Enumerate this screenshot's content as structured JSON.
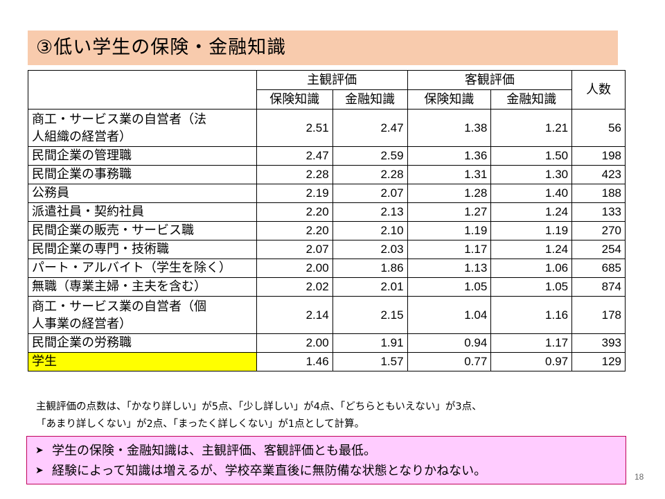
{
  "title": "③低い学生の保険・金融知識",
  "table": {
    "group_headers": [
      "主観評価",
      "客観評価"
    ],
    "count_header": "人数",
    "sub_headers": [
      "保険知識",
      "金融知識",
      "保険知識",
      "金融知識"
    ],
    "rows": [
      {
        "category": "商工・サービス業の自営者（法人組織の経営者）",
        "values": [
          "2.51",
          "2.47",
          "1.38",
          "1.21",
          "56"
        ]
      },
      {
        "category": "民間企業の管理職",
        "values": [
          "2.47",
          "2.59",
          "1.36",
          "1.50",
          "198"
        ]
      },
      {
        "category": "民間企業の事務職",
        "values": [
          "2.28",
          "2.28",
          "1.31",
          "1.30",
          "423"
        ]
      },
      {
        "category": "公務員",
        "values": [
          "2.19",
          "2.07",
          "1.28",
          "1.40",
          "188"
        ]
      },
      {
        "category": "派遣社員・契約社員",
        "values": [
          "2.20",
          "2.13",
          "1.27",
          "1.24",
          "133"
        ]
      },
      {
        "category": "民間企業の販売・サービス職",
        "values": [
          "2.20",
          "2.10",
          "1.19",
          "1.19",
          "270"
        ]
      },
      {
        "category": "民間企業の専門・技術職",
        "values": [
          "2.07",
          "2.03",
          "1.17",
          "1.24",
          "254"
        ]
      },
      {
        "category": "パート・アルバイト（学生を除く）",
        "values": [
          "2.00",
          "1.86",
          "1.13",
          "1.06",
          "685"
        ]
      },
      {
        "category": "無職（専業主婦・主夫を含む）",
        "values": [
          "2.02",
          "2.01",
          "1.05",
          "1.05",
          "874"
        ]
      },
      {
        "category": "商工・サービス業の自営者（個人事業の経営者）",
        "values": [
          "2.14",
          "2.15",
          "1.04",
          "1.16",
          "178"
        ]
      },
      {
        "category": "民間企業の労務職",
        "values": [
          "2.00",
          "1.91",
          "0.94",
          "1.17",
          "393"
        ]
      },
      {
        "category": "学生",
        "values": [
          "1.46",
          "1.57",
          "0.77",
          "0.97",
          "129"
        ],
        "highlight": "#ffff00"
      }
    ]
  },
  "note": [
    "主観評価の点数は、「かなり詳しい」が5点、「少し詳しい」が4点、「どちらともいえない」が3点、",
    "「あまり詳しくない」が2点、「まったく詳しくない」が1点として計算。"
  ],
  "summary": {
    "bullet_icon": "arrow-bullet-icon",
    "items": [
      "学生の保険・金融知識は、主観評価、客観評価とも最低。",
      "経験によって知識は増えるが、学校卒業直後に無防備な状態となりかねない。"
    ]
  },
  "page_number": "18",
  "colors": {
    "title_background": "#f8cbad",
    "summary_background": "#ffccff",
    "summary_border": "#c0005a",
    "student_highlight": "#ffff00"
  }
}
